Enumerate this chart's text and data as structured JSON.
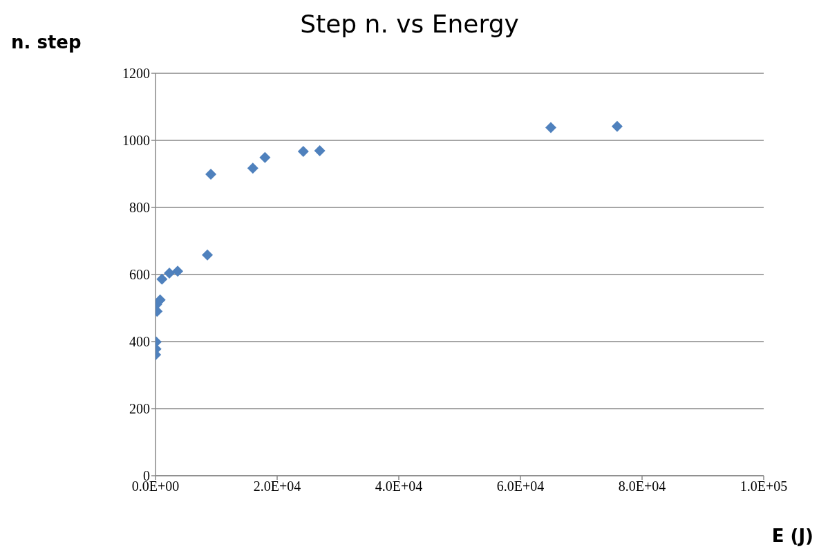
{
  "chart_data": {
    "type": "scatter",
    "title": "Step n. vs Energy",
    "xlabel": "E (J)",
    "ylabel": "n. step",
    "x": [
      20,
      80,
      110,
      260,
      190,
      760,
      1060,
      2280,
      3640,
      8530,
      9100,
      16000,
      18000,
      24300,
      27000,
      65000,
      75900
    ],
    "series": [
      {
        "color": "#4f81bd",
        "values": [
          361,
          378,
          399,
          490,
          511,
          524,
          586,
          604,
          610,
          658,
          899,
          917,
          949,
          967,
          969,
          1038,
          1042
        ]
      }
    ],
    "xlim": [
      0,
      100000
    ],
    "xticks": [
      {
        "value": 0,
        "label": "0.0E+00"
      },
      {
        "value": 20000,
        "label": "2.0E+04"
      },
      {
        "value": 40000,
        "label": "4.0E+04"
      },
      {
        "value": 60000,
        "label": "6.0E+04"
      },
      {
        "value": 80000,
        "label": "8.0E+04"
      },
      {
        "value": 100000,
        "label": "1.0E+05"
      }
    ],
    "ylim": [
      0,
      1200
    ],
    "yticks": [
      0,
      200,
      400,
      600,
      800,
      1000,
      1200
    ],
    "grid": "y",
    "marker": "diamond",
    "legend": false
  }
}
